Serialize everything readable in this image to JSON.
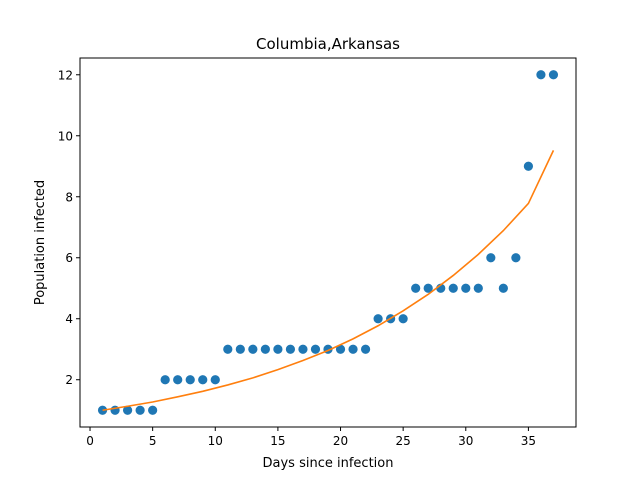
{
  "chart_data": {
    "type": "scatter",
    "title": "Columbia,Arkansas",
    "xlabel": "Days since infection",
    "ylabel": "Population infected",
    "xlim": [
      -0.8,
      38.8
    ],
    "ylim": [
      0.45,
      12.55
    ],
    "xticks": [
      0,
      5,
      10,
      15,
      20,
      25,
      30,
      35
    ],
    "yticks": [
      2,
      4,
      6,
      8,
      10,
      12
    ],
    "grid": false,
    "series": [
      {
        "kind": "scatter",
        "color": "#1f77b4",
        "x": [
          1,
          2,
          3,
          4,
          5,
          6,
          7,
          8,
          9,
          10,
          11,
          12,
          13,
          14,
          15,
          16,
          17,
          18,
          19,
          20,
          21,
          22,
          23,
          24,
          25,
          26,
          27,
          28,
          29,
          30,
          31,
          32,
          33,
          34,
          35,
          36,
          37
        ],
        "y": [
          1,
          1,
          1,
          1,
          1,
          2,
          2,
          2,
          2,
          2,
          3,
          3,
          3,
          3,
          3,
          3,
          3,
          3,
          3,
          3,
          3,
          3,
          4,
          4,
          4,
          5,
          5,
          5,
          5,
          5,
          5,
          6,
          5,
          6,
          9,
          12,
          12
        ]
      },
      {
        "kind": "line",
        "color": "#ff7f0e",
        "x": [
          1,
          3,
          5,
          7,
          9,
          11,
          13,
          15,
          17,
          19,
          21,
          23,
          25,
          27,
          29,
          31,
          33,
          35,
          37
        ],
        "y": [
          1.0,
          1.13,
          1.27,
          1.44,
          1.62,
          1.83,
          2.06,
          2.33,
          2.63,
          2.96,
          3.34,
          3.77,
          4.26,
          4.8,
          5.42,
          6.11,
          6.89,
          7.78,
          9.52
        ]
      }
    ]
  }
}
